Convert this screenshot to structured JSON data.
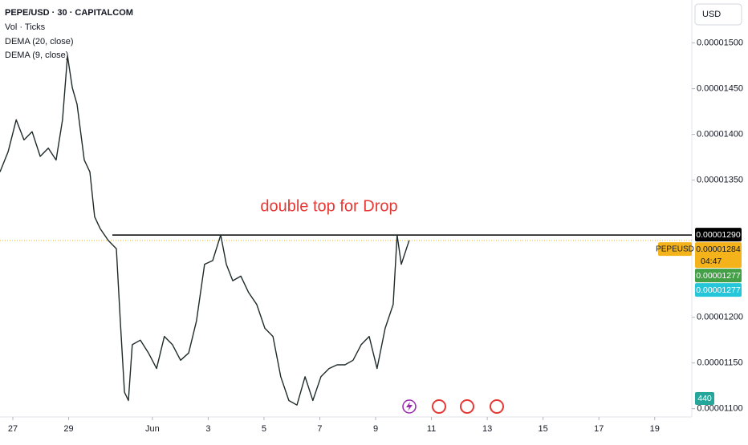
{
  "chart_data": {
    "type": "line",
    "title": "PEPE/USD · 30 · CAPITALCOM",
    "indicators": [
      "Vol · Ticks",
      "DEMA (20, close)",
      "DEMA (9, close)"
    ],
    "currency": "USD",
    "annotation": "double top for Drop",
    "annotation_color": "#e53935",
    "symbol_tag": "PEPEUSD",
    "countdown": "04:47",
    "volume_label": "440",
    "hline": 1.29e-05,
    "price_labels": [
      {
        "value": 1.29e-05,
        "label": "0.00001290",
        "color": "#000000"
      },
      {
        "value": 1.284e-05,
        "label": "0.00001284",
        "color": "#f5b31b"
      },
      {
        "value": 1.277e-05,
        "label": "0.00001277",
        "color": "#43a047"
      },
      {
        "value": 1.277e-05,
        "label": "0.00001277",
        "color": "#26c6da"
      }
    ],
    "xlim": [
      -0.46,
      24.33
    ],
    "xticks": [
      {
        "value": 0,
        "label": "27"
      },
      {
        "value": 2,
        "label": "29"
      },
      {
        "value": 5,
        "label": "Jun"
      },
      {
        "value": 7,
        "label": "3"
      },
      {
        "value": 9,
        "label": "5"
      },
      {
        "value": 11,
        "label": "7"
      },
      {
        "value": 13,
        "label": "9"
      },
      {
        "value": 15,
        "label": "11"
      },
      {
        "value": 17,
        "label": "13"
      },
      {
        "value": 19,
        "label": "15"
      },
      {
        "value": 21,
        "label": "17"
      },
      {
        "value": 23,
        "label": "19"
      }
    ],
    "ylim": [
      1.091e-05,
      1.547e-05
    ],
    "yticks": [
      {
        "value": 1.5e-05,
        "label": "0.00001500"
      },
      {
        "value": 1.45e-05,
        "label": "0.00001450"
      },
      {
        "value": 1.4e-05,
        "label": "0.00001400"
      },
      {
        "value": 1.35e-05,
        "label": "0.00001350"
      },
      {
        "value": 1.2e-05,
        "label": "0.00001200"
      },
      {
        "value": 1.15e-05,
        "label": "0.00001150"
      },
      {
        "value": 1.1e-05,
        "label": "0.00001100"
      }
    ],
    "grid": false,
    "series": [
      {
        "name": "PEPE/USD",
        "color": "#1f2a2a",
        "x": [
          -0.46,
          -0.17,
          0.12,
          0.4,
          0.69,
          0.98,
          1.27,
          1.55,
          1.78,
          1.96,
          2.13,
          2.3,
          2.56,
          2.76,
          2.93,
          3.13,
          3.42,
          3.71,
          3.85,
          4.0,
          4.14,
          4.28,
          4.57,
          4.86,
          5.15,
          5.43,
          5.72,
          6.01,
          6.3,
          6.58,
          6.87,
          7.16,
          7.45,
          7.65,
          7.88,
          8.17,
          8.45,
          8.74,
          9.03,
          9.32,
          9.6,
          9.89,
          10.18,
          10.47,
          10.75,
          11.04,
          11.33,
          11.62,
          11.9,
          12.19,
          12.48,
          12.77,
          13.05,
          13.34,
          13.63,
          13.77,
          13.92,
          14.2
        ],
        "values": [
          1.359e-05,
          1.381e-05,
          1.416e-05,
          1.394e-05,
          1.403e-05,
          1.376e-05,
          1.385e-05,
          1.372e-05,
          1.416e-05,
          1.486e-05,
          1.451e-05,
          1.433e-05,
          1.372e-05,
          1.359e-05,
          1.31e-05,
          1.297e-05,
          1.284e-05,
          1.275e-05,
          1.196e-05,
          1.118e-05,
          1.109e-05,
          1.17e-05,
          1.175e-05,
          1.161e-05,
          1.144e-05,
          1.179e-05,
          1.17e-05,
          1.153e-05,
          1.161e-05,
          1.196e-05,
          1.258e-05,
          1.262e-05,
          1.29e-05,
          1.258e-05,
          1.24e-05,
          1.245e-05,
          1.227e-05,
          1.214e-05,
          1.188e-05,
          1.179e-05,
          1.135e-05,
          1.109e-05,
          1.104e-05,
          1.135e-05,
          1.109e-05,
          1.135e-05,
          1.144e-05,
          1.148e-05,
          1.148e-05,
          1.153e-05,
          1.17e-05,
          1.179e-05,
          1.144e-05,
          1.188e-05,
          1.214e-05,
          1.29e-05,
          1.258e-05,
          1.284e-05
        ]
      }
    ]
  }
}
